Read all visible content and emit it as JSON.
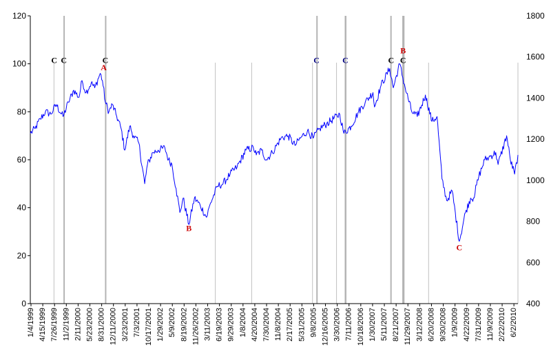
{
  "chart_data": {
    "type": "line",
    "title": "",
    "xlabel": "",
    "ylabel": "",
    "y_left": {
      "ylim": [
        0,
        120
      ],
      "ticks": [
        0,
        20,
        40,
        60,
        80,
        100,
        120
      ]
    },
    "y_right": {
      "ylim": [
        400,
        1800
      ],
      "ticks": [
        400,
        600,
        800,
        1000,
        1200,
        1400,
        1600,
        1800
      ]
    },
    "x_range": [
      "1999-01-04",
      "2010-07-30"
    ],
    "x_tick_labels": [
      "1/4/1999",
      "4/15/1999",
      "7/26/1999",
      "11/2/1999",
      "2/11/2000",
      "5/23/2000",
      "8/31/2000",
      "12/11/2000",
      "3/23/2001",
      "7/3/2001",
      "10/17/2001",
      "1/29/2002",
      "5/9/2002",
      "8/19/2002",
      "11/26/2002",
      "3/11/2003",
      "6/19/2003",
      "9/29/2003",
      "1/8/2004",
      "4/20/2004",
      "7/30/2004",
      "11/8/2004",
      "2/17/2005",
      "5/31/2005",
      "9/8/2005",
      "12/16/2005",
      "3/30/2006",
      "7/11/2006",
      "10/18/2006",
      "1/30/2007",
      "5/11/2007",
      "8/21/2007",
      "11/29/2007",
      "3/12/2008",
      "6/20/2008",
      "9/30/2008",
      "1/9/2009",
      "4/22/2009",
      "7/31/2009",
      "11/9/2009",
      "2/22/2010",
      "6/2/2010"
    ],
    "grid": false,
    "legend": "none",
    "line_color": "#0000ff",
    "series": [
      {
        "axis": "left",
        "values": [
          [
            "1999-01-04",
            71
          ],
          [
            "1999-02-15",
            73
          ],
          [
            "1999-04-01",
            77
          ],
          [
            "1999-05-15",
            80
          ],
          [
            "1999-07-01",
            79
          ],
          [
            "1999-08-15",
            83
          ],
          [
            "1999-10-15",
            78
          ],
          [
            "1999-12-01",
            84
          ],
          [
            "2000-01-15",
            89
          ],
          [
            "2000-03-01",
            86
          ],
          [
            "2000-03-27",
            93
          ],
          [
            "2000-05-01",
            88
          ],
          [
            "2000-06-15",
            92
          ],
          [
            "2000-07-15",
            90
          ],
          [
            "2000-09-01",
            96
          ],
          [
            "2000-09-20",
            93
          ],
          [
            "2000-10-15",
            84
          ],
          [
            "2000-11-15",
            80
          ],
          [
            "2000-12-15",
            83
          ],
          [
            "2001-01-15",
            79
          ],
          [
            "2001-03-01",
            73
          ],
          [
            "2001-04-01",
            64
          ],
          [
            "2001-05-15",
            74
          ],
          [
            "2001-06-15",
            70
          ],
          [
            "2001-08-01",
            67
          ],
          [
            "2001-09-21",
            50
          ],
          [
            "2001-10-15",
            58
          ],
          [
            "2001-12-01",
            63
          ],
          [
            "2002-01-15",
            64
          ],
          [
            "2002-03-15",
            65
          ],
          [
            "2002-04-15",
            60
          ],
          [
            "2002-05-15",
            58
          ],
          [
            "2002-06-20",
            48
          ],
          [
            "2002-07-23",
            38
          ],
          [
            "2002-08-20",
            44
          ],
          [
            "2002-10-09",
            33
          ],
          [
            "2002-11-26",
            44
          ],
          [
            "2003-01-15",
            41
          ],
          [
            "2003-03-11",
            36
          ],
          [
            "2003-04-15",
            42
          ],
          [
            "2003-06-15",
            49
          ],
          [
            "2003-08-01",
            50
          ],
          [
            "2003-10-01",
            54
          ],
          [
            "2003-12-01",
            57
          ],
          [
            "2004-02-15",
            64
          ],
          [
            "2004-04-20",
            65
          ],
          [
            "2004-05-15",
            62
          ],
          [
            "2004-06-30",
            64
          ],
          [
            "2004-08-10",
            60
          ],
          [
            "2004-10-01",
            63
          ],
          [
            "2004-12-15",
            69
          ],
          [
            "2005-02-15",
            70
          ],
          [
            "2005-04-15",
            66
          ],
          [
            "2005-06-01",
            69
          ],
          [
            "2005-08-01",
            72
          ],
          [
            "2005-09-20",
            69
          ],
          [
            "2005-11-15",
            73
          ],
          [
            "2006-01-15",
            75
          ],
          [
            "2006-05-08",
            79
          ],
          [
            "2006-06-13",
            71
          ],
          [
            "2006-08-15",
            74
          ],
          [
            "2006-10-18",
            80
          ],
          [
            "2006-12-15",
            84
          ],
          [
            "2007-02-20",
            88
          ],
          [
            "2007-03-05",
            82
          ],
          [
            "2007-05-01",
            91
          ],
          [
            "2007-07-15",
            98
          ],
          [
            "2007-08-15",
            90
          ],
          [
            "2007-10-09",
            100
          ],
          [
            "2007-11-26",
            90
          ],
          [
            "2008-01-22",
            80
          ],
          [
            "2008-03-10",
            78
          ],
          [
            "2008-05-19",
            87
          ],
          [
            "2008-07-15",
            76
          ],
          [
            "2008-08-28",
            78
          ],
          [
            "2008-10-10",
            52
          ],
          [
            "2008-11-20",
            43
          ],
          [
            "2009-01-06",
            47
          ],
          [
            "2009-03-09",
            26
          ],
          [
            "2009-05-01",
            38
          ],
          [
            "2009-06-15",
            44
          ],
          [
            "2009-07-10",
            44
          ],
          [
            "2009-08-25",
            53
          ],
          [
            "2009-10-15",
            60
          ],
          [
            "2009-11-20",
            61
          ],
          [
            "2010-01-19",
            63
          ],
          [
            "2010-02-08",
            58
          ],
          [
            "2010-04-23",
            70
          ],
          [
            "2010-05-25",
            60
          ],
          [
            "2010-07-01",
            54
          ],
          [
            "2010-07-30",
            62
          ]
        ]
      }
    ],
    "shaded_periods": [
      [
        "1999-10-18",
        "1999-10-28"
      ],
      [
        "2000-10-12",
        "2000-10-20"
      ],
      [
        "2005-10-17",
        "2005-10-24"
      ],
      [
        "2006-06-20",
        "2006-07-05"
      ],
      [
        "2007-07-20",
        "2007-08-01"
      ],
      [
        "2007-11-01",
        "2007-11-20"
      ]
    ],
    "reference_lines": [
      "1999-07-28",
      "2003-05-26",
      "2004-04-05",
      "2005-09-14",
      "2006-04-10",
      "2008-06-16",
      "2010-07-30"
    ],
    "markers": [
      {
        "text": "C",
        "date": "1999-07-30",
        "value": 100,
        "color": "#000000"
      },
      {
        "text": "C",
        "date": "1999-10-22",
        "value": 100,
        "color": "#000000"
      },
      {
        "text": "C",
        "date": "2000-10-15",
        "value": 100,
        "color": "#000000"
      },
      {
        "text": "A",
        "date": "2000-10-01",
        "value": 97,
        "color": "#cc0000"
      },
      {
        "text": "B",
        "date": "2002-10-09",
        "value": 30,
        "color": "#cc0000"
      },
      {
        "text": "C",
        "date": "2005-10-19",
        "value": 100,
        "color": "#000080"
      },
      {
        "text": "C",
        "date": "2006-06-26",
        "value": 100,
        "color": "#000080"
      },
      {
        "text": "C",
        "date": "2007-07-27",
        "value": 100,
        "color": "#000000"
      },
      {
        "text": "C",
        "date": "2007-11-08",
        "value": 100,
        "color": "#000000"
      },
      {
        "text": "B",
        "date": "2007-11-08",
        "value": 104,
        "color": "#cc0000"
      },
      {
        "text": "C",
        "date": "2009-03-09",
        "value": 22,
        "color": "#cc0000"
      }
    ]
  }
}
